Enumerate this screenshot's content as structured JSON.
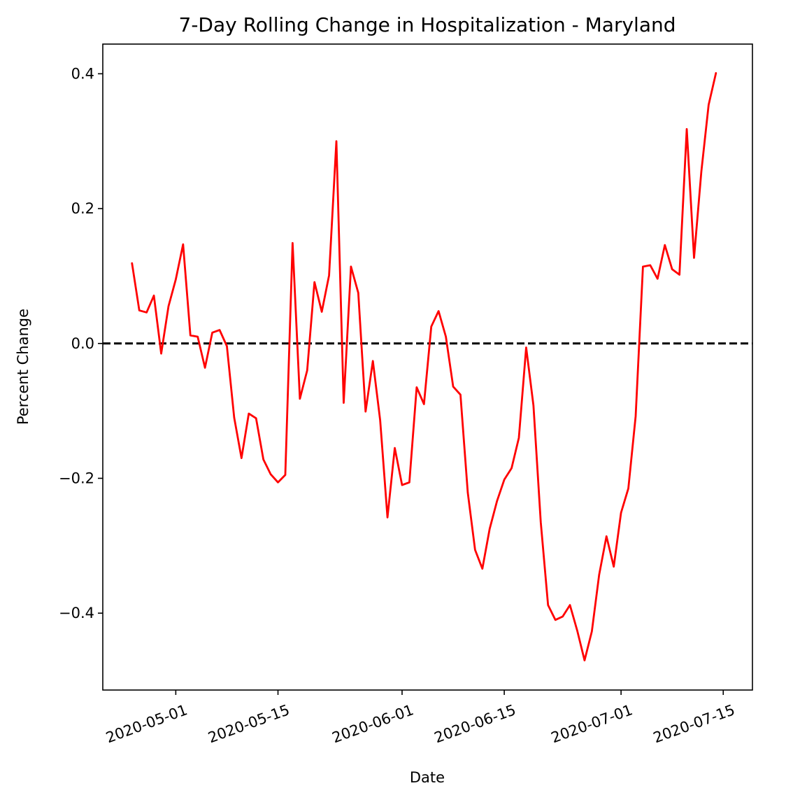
{
  "chart_data": {
    "type": "line",
    "title": "7-Day Rolling Change in Hospitalization - Maryland",
    "xlabel": "Date",
    "ylabel": "Percent Change",
    "x_ticks": [
      "2020-05-01",
      "2020-05-15",
      "2020-06-01",
      "2020-06-15",
      "2020-07-01",
      "2020-07-15"
    ],
    "y_ticks": [
      {
        "value": -0.4,
        "label": "−0.4"
      },
      {
        "value": -0.2,
        "label": "−0.2"
      },
      {
        "value": 0.0,
        "label": "0.0"
      },
      {
        "value": 0.2,
        "label": "0.2"
      },
      {
        "value": 0.4,
        "label": "0.4"
      }
    ],
    "xlim": [
      "2020-04-21",
      "2020-07-19"
    ],
    "ylim": [
      -0.514,
      0.444
    ],
    "grid": false,
    "reference_line": {
      "y": 0.0,
      "color": "#000000",
      "style": "dashed"
    },
    "series": [
      {
        "color": "#ff0000",
        "x_start": "2020-04-25",
        "x_step_days": 1,
        "values": [
          0.119,
          0.049,
          0.046,
          0.071,
          -0.015,
          0.055,
          0.095,
          0.147,
          0.012,
          0.01,
          -0.036,
          0.016,
          0.02,
          -0.004,
          -0.11,
          -0.17,
          -0.104,
          -0.111,
          -0.172,
          -0.194,
          -0.206,
          -0.195,
          0.149,
          -0.082,
          -0.04,
          0.091,
          0.047,
          0.101,
          0.3,
          -0.088,
          0.114,
          0.075,
          -0.101,
          -0.026,
          -0.114,
          -0.258,
          -0.155,
          -0.21,
          -0.206,
          -0.065,
          -0.09,
          0.025,
          0.048,
          0.01,
          -0.064,
          -0.076,
          -0.221,
          -0.306,
          -0.334,
          -0.275,
          -0.234,
          -0.202,
          -0.185,
          -0.14,
          -0.006,
          -0.092,
          -0.265,
          -0.388,
          -0.41,
          -0.405,
          -0.388,
          -0.426,
          -0.47,
          -0.427,
          -0.343,
          -0.286,
          -0.331,
          -0.251,
          -0.215,
          -0.108,
          0.114,
          0.116,
          0.096,
          0.146,
          0.11,
          0.102,
          0.318,
          0.127,
          0.255,
          0.354,
          0.401
        ]
      }
    ]
  }
}
